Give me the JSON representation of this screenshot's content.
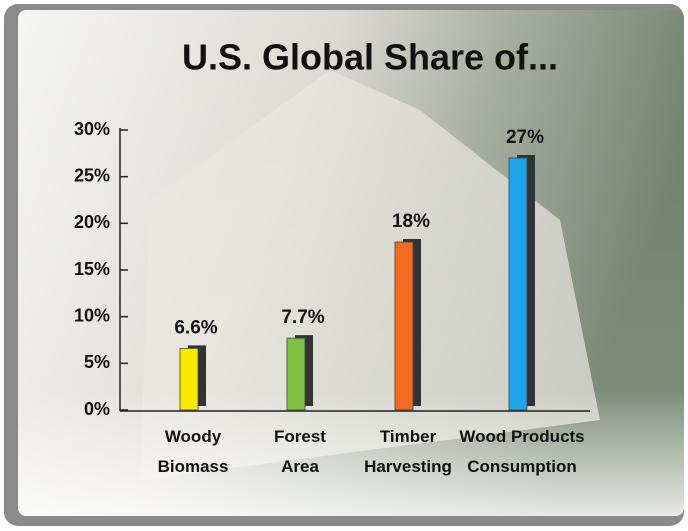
{
  "chart_data": {
    "type": "bar",
    "title": "U.S. Global Share of...",
    "categories": [
      "Woody\nBiomass",
      "Forest\nArea",
      "Timber\nHarvesting",
      "Wood Products\nConsumption"
    ],
    "values": [
      6.6,
      7.7,
      18,
      27
    ],
    "value_labels": [
      "6.6%",
      "7.7%",
      "18%",
      "27%"
    ],
    "colors": [
      "#f7ea00",
      "#7dc143",
      "#f26a21",
      "#1ea6ea"
    ],
    "ylim": [
      0,
      30
    ],
    "yticks": [
      {
        "value": 0,
        "label": "0%"
      },
      {
        "value": 5,
        "label": "5%"
      },
      {
        "value": 10,
        "label": "10%"
      },
      {
        "value": 15,
        "label": "15%"
      },
      {
        "value": 20,
        "label": "20%"
      },
      {
        "value": 25,
        "label": "25%"
      },
      {
        "value": 30,
        "label": "30%"
      }
    ]
  }
}
